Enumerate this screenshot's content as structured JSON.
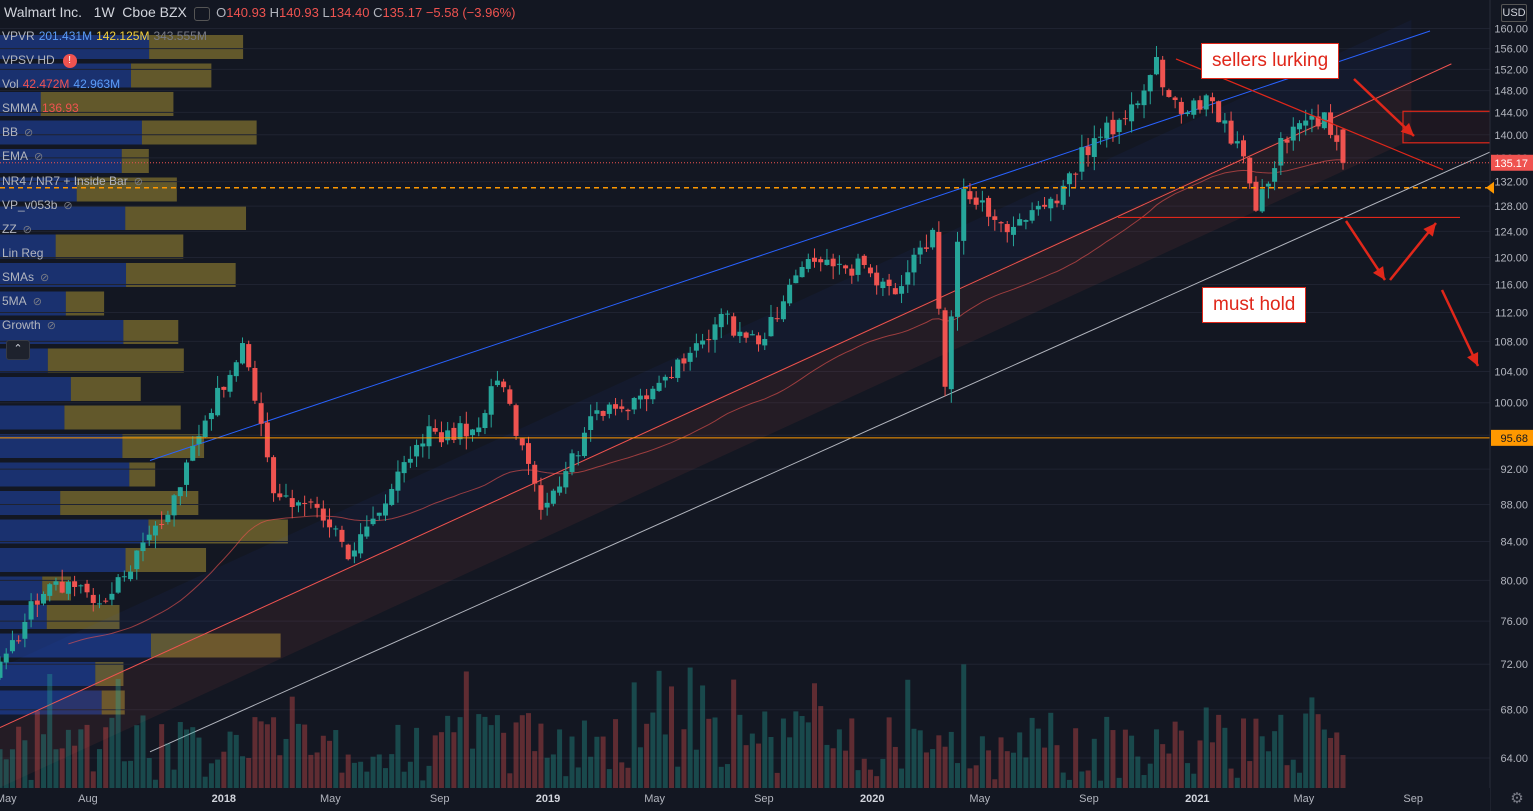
{
  "header": {
    "symbol": "Walmart Inc.",
    "interval": "1W",
    "exchange": "Cboe BZX",
    "o_label": "O",
    "o": "140.93",
    "h_label": "H",
    "h": "140.93",
    "l_label": "L",
    "l": "134.40",
    "c_label": "C",
    "c": "135.17",
    "change": "−5.58 (−3.96%)"
  },
  "indicators": [
    {
      "name": "VPVR",
      "values": [
        "201.431M",
        "142.125M",
        "343.555M"
      ]
    },
    {
      "name": "VPSV HD",
      "warning": "!"
    },
    {
      "name": "Vol",
      "values": [
        "42.472M",
        "42.963M"
      ]
    },
    {
      "name": "SMMA",
      "values": [
        "136.93"
      ]
    },
    {
      "name": "BB",
      "hidden": true
    },
    {
      "name": "EMA",
      "hidden": true
    },
    {
      "name": "NR4 / NR7 + Inside Bar",
      "hidden": true
    },
    {
      "name": "VP_v053b",
      "hidden": true
    },
    {
      "name": "ZZ",
      "hidden": true
    },
    {
      "name": "Lin Reg"
    },
    {
      "name": "SMAs",
      "hidden": true
    },
    {
      "name": "5MA",
      "hidden": true
    },
    {
      "name": "Growth",
      "hidden": true
    }
  ],
  "currency_label": "USD",
  "annotations": {
    "sellers": "sellers lurking",
    "hold": "must hold"
  },
  "colors": {
    "up": "#26a69a",
    "down": "#ef5350",
    "annotation": "#e0271a",
    "vp_up": "#2962ff",
    "vp_down": "#f5d13c",
    "channel": "#ef5350",
    "upper_channel": "#2962ff",
    "lower_channel": "#b2b5be"
  },
  "chart_data": {
    "type": "candlestick",
    "scale": "log",
    "ylim": [
      62,
      162
    ],
    "y_ticks": [
      64,
      68,
      72,
      76,
      80,
      84,
      88,
      92,
      96,
      100,
      104,
      108,
      112,
      116,
      120,
      124,
      128,
      132,
      136,
      140,
      144,
      148,
      152,
      156,
      160
    ],
    "x_ticks": [
      "May",
      "Aug",
      "2018",
      "May",
      "Sep",
      "2019",
      "May",
      "Sep",
      "2020",
      "May",
      "Sep",
      "2021",
      "May",
      "Sep"
    ],
    "last_price_label": "135.17",
    "level_label": "95.68",
    "last_price": 135.17,
    "level": 95.68,
    "price_path": [
      [
        "2017-04-24",
        71.5
      ],
      [
        "2017-06-05",
        78.5
      ],
      [
        "2017-07-10",
        79.5
      ],
      [
        "2017-08-21",
        77.5
      ],
      [
        "2017-10-23",
        86
      ],
      [
        "2017-12-11",
        97
      ],
      [
        "2018-01-22",
        108
      ],
      [
        "2018-02-26",
        90
      ],
      [
        "2018-04-09",
        87.5
      ],
      [
        "2018-05-21",
        83
      ],
      [
        "2018-08-20",
        96
      ],
      [
        "2018-10-15",
        97
      ],
      [
        "2018-11-05",
        104
      ],
      [
        "2018-12-24",
        87
      ],
      [
        "2019-02-25",
        98.5
      ],
      [
        "2019-04-29",
        101
      ],
      [
        "2019-07-15",
        111
      ],
      [
        "2019-08-26",
        108
      ],
      [
        "2019-10-21",
        119
      ],
      [
        "2019-12-16",
        118.5
      ],
      [
        "2020-01-27",
        114
      ],
      [
        "2020-03-09",
        124
      ],
      [
        "2020-03-23",
        103
      ],
      [
        "2020-04-13",
        131
      ],
      [
        "2020-05-25",
        124
      ],
      [
        "2020-07-06",
        129
      ],
      [
        "2020-07-27",
        129.5
      ],
      [
        "2020-08-31",
        138
      ],
      [
        "2020-10-12",
        143
      ],
      [
        "2020-11-16",
        152.5
      ],
      [
        "2020-12-07",
        145
      ],
      [
        "2021-01-11",
        146
      ],
      [
        "2021-02-15",
        138
      ],
      [
        "2021-03-08",
        128.5
      ],
      [
        "2021-04-05",
        138
      ],
      [
        "2021-05-03",
        141.5
      ],
      [
        "2021-05-24",
        142.5
      ],
      [
        "2021-06-14",
        135.17
      ]
    ],
    "volume_avg_path": [
      [
        "2017-04-24",
        70.5
      ],
      [
        "2021-06-14",
        69.5
      ]
    ]
  }
}
